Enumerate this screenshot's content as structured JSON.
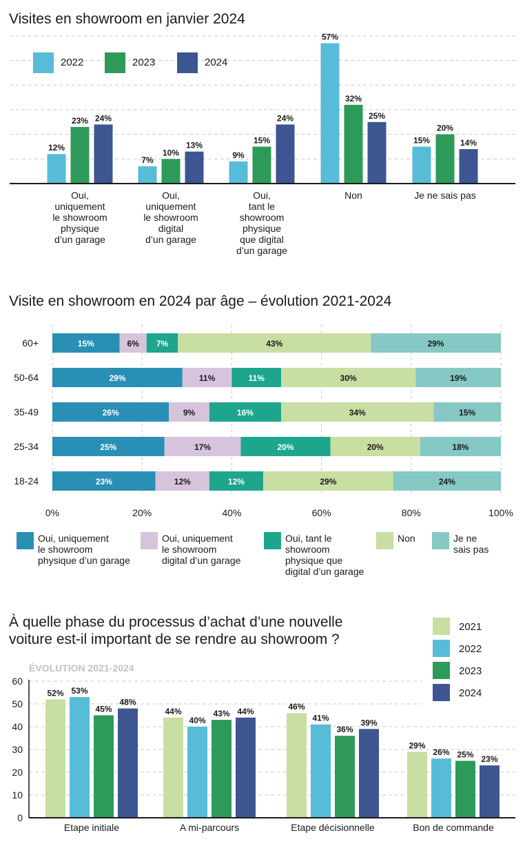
{
  "colors": {
    "y2021": "#c8dea2",
    "y2022": "#56bcd8",
    "y2023": "#2e9a59",
    "y2024": "#3d5591",
    "age_oui_physique": "#2a8fb5",
    "age_oui_digital": "#d7c4dc",
    "age_oui_tant": "#1da68c",
    "age_non": "#c8dea2",
    "age_nsp": "#85c8c4"
  },
  "chart_data": [
    {
      "type": "bar",
      "title": "Visites en showroom en janvier 2024",
      "categories": [
        [
          "Oui,",
          "uniquement",
          "le showroom",
          "physique",
          "d’un garage"
        ],
        [
          "Oui,",
          "uniquement",
          "le showroom",
          "digital",
          "d’un garage"
        ],
        [
          "Oui,",
          "tant le",
          "showroom",
          "physique",
          "que digital",
          "d’un garage"
        ],
        [
          "Non"
        ],
        [
          "Je ne sais pas"
        ]
      ],
      "series": [
        {
          "name": "2022",
          "color_key": "y2022",
          "values": [
            12,
            7,
            9,
            57,
            15
          ]
        },
        {
          "name": "2023",
          "color_key": "y2023",
          "values": [
            23,
            10,
            15,
            32,
            20
          ]
        },
        {
          "name": "2024",
          "color_key": "y2024",
          "values": [
            24,
            13,
            24,
            25,
            14
          ]
        }
      ],
      "value_suffix": "%",
      "ylim": [
        0,
        60
      ],
      "grid": true,
      "legend_position": "top-left"
    },
    {
      "type": "bar",
      "orientation": "horizontal-stacked",
      "title": "Visite en showroom en 2024 par âge – évolution 2021-2024",
      "categories": [
        "60+",
        "50-64",
        "35-49",
        "25-34",
        "18-24"
      ],
      "series": [
        {
          "name": [
            "Oui, uniquement",
            "le showroom",
            "physique d’un garage"
          ],
          "color_key": "age_oui_physique",
          "values": [
            15,
            29,
            26,
            25,
            23
          ]
        },
        {
          "name": [
            "Oui, uniquement",
            "le showroom",
            "digital d’un garage"
          ],
          "color_key": "age_oui_digital",
          "values": [
            6,
            11,
            9,
            17,
            12
          ]
        },
        {
          "name": [
            "Oui, tant le",
            "showroom",
            "physique que",
            "digital d’un garage"
          ],
          "color_key": "age_oui_tant",
          "values": [
            7,
            11,
            16,
            20,
            12
          ]
        },
        {
          "name": [
            "Non"
          ],
          "color_key": "age_non",
          "values": [
            43,
            30,
            34,
            20,
            29
          ]
        },
        {
          "name": [
            "Je ne",
            "sais pas"
          ],
          "color_key": "age_nsp",
          "values": [
            29,
            19,
            15,
            18,
            24
          ]
        }
      ],
      "xticks": [
        "0%",
        "20%",
        "40%",
        "60%",
        "80%",
        "100%"
      ],
      "xlim": [
        0,
        100
      ],
      "value_suffix": "%",
      "legend_position": "bottom"
    },
    {
      "type": "bar",
      "title": [
        "À quelle phase du processus d’achat d’une nouvelle",
        "voiture est-il important de se rendre au showroom ?"
      ],
      "subtitle": "ÉVOLUTION 2021-2024",
      "categories": [
        "Etape initiale",
        "A mi-parcours",
        "Etape décisionnelle",
        "Bon de commande"
      ],
      "series": [
        {
          "name": "2021",
          "color_key": "y2021",
          "values": [
            52,
            44,
            46,
            29
          ]
        },
        {
          "name": "2022",
          "color_key": "y2022",
          "values": [
            53,
            40,
            41,
            26
          ]
        },
        {
          "name": "2023",
          "color_key": "y2023",
          "values": [
            45,
            43,
            36,
            25
          ]
        },
        {
          "name": "2024",
          "color_key": "y2024",
          "values": [
            48,
            44,
            39,
            23
          ]
        }
      ],
      "yticks": [
        "0",
        "10",
        "20",
        "30",
        "40",
        "50",
        "60"
      ],
      "ylim": [
        0,
        60
      ],
      "value_suffix": "%",
      "legend_position": "top-right"
    }
  ]
}
